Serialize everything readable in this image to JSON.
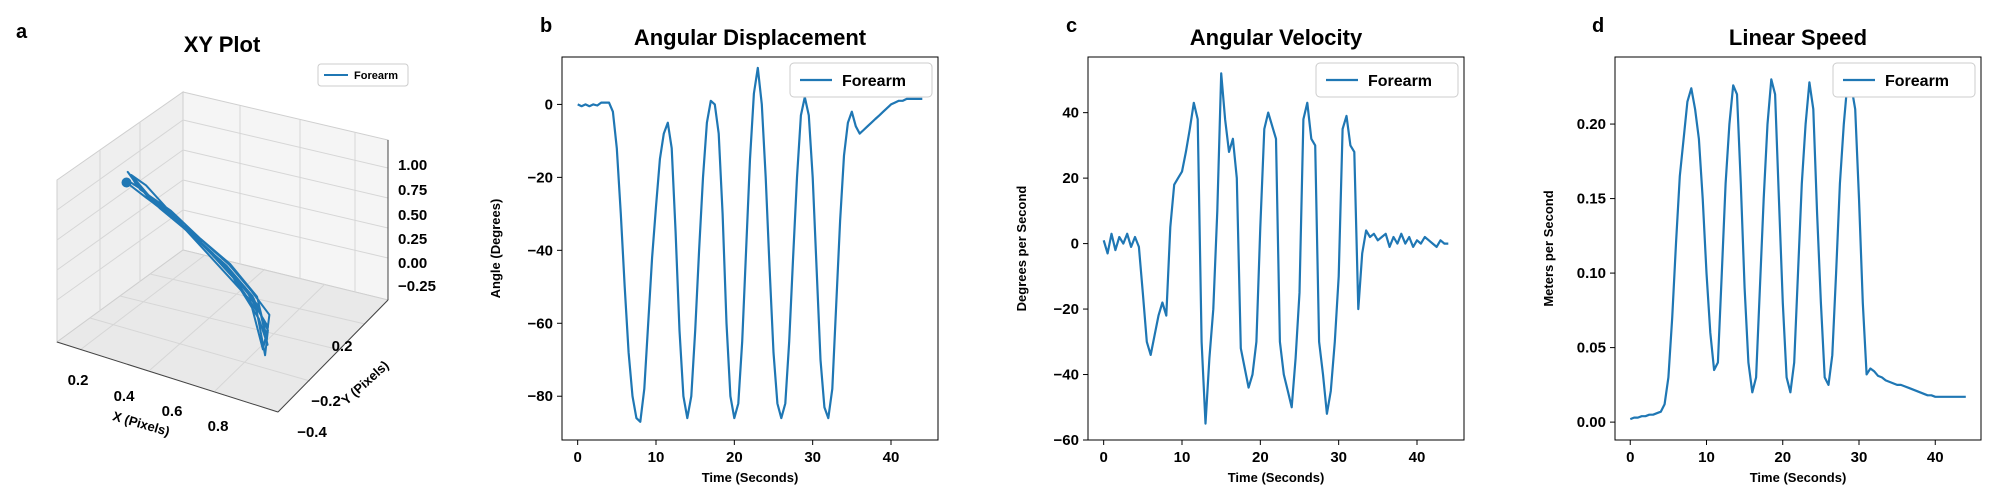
{
  "colors": {
    "series": "#1f77b4",
    "pane": "#f2f2f2",
    "grid": "#d9d9d9"
  },
  "chart_data": [
    {
      "panel": "a",
      "type": "line3d",
      "title": "XY Plot",
      "xlabel": "X (Pixels)",
      "ylabel": "Y (Pixels)",
      "legend": {
        "placement": "top-right",
        "label": "Forearm"
      },
      "x_ticks": [
        "0.2",
        "0.4",
        "0.6",
        "0.8"
      ],
      "y_ticks": [
        "−0.4",
        "−0.2",
        "0.2"
      ],
      "z_ticks": [
        "−0.25",
        "0.00",
        "0.25",
        "0.50",
        "0.75",
        "1.00"
      ],
      "series": [
        {
          "name": "Forearm",
          "points": [
            [
              0.05,
              0.25,
              0.6
            ],
            [
              0.15,
              0.22,
              0.52
            ],
            [
              0.3,
              0.18,
              0.4
            ],
            [
              0.45,
              0.12,
              0.3
            ],
            [
              0.6,
              0.05,
              0.2
            ],
            [
              0.75,
              -0.05,
              0.1
            ],
            [
              0.88,
              -0.15,
              0.02
            ],
            [
              0.92,
              -0.25,
              -0.08
            ],
            [
              0.8,
              -0.1,
              0.12
            ],
            [
              0.62,
              0.02,
              0.25
            ],
            [
              0.45,
              0.1,
              0.35
            ],
            [
              0.28,
              0.18,
              0.48
            ],
            [
              0.12,
              0.23,
              0.58
            ],
            [
              0.05,
              0.26,
              0.7
            ],
            [
              0.18,
              0.21,
              0.5
            ],
            [
              0.35,
              0.15,
              0.38
            ],
            [
              0.52,
              0.07,
              0.26
            ],
            [
              0.68,
              -0.02,
              0.14
            ],
            [
              0.82,
              -0.12,
              0.04
            ],
            [
              0.94,
              -0.28,
              -0.12
            ],
            [
              0.85,
              -0.18,
              0.0
            ],
            [
              0.66,
              -0.03,
              0.18
            ],
            [
              0.48,
              0.08,
              0.3
            ],
            [
              0.3,
              0.17,
              0.44
            ],
            [
              0.14,
              0.24,
              0.62
            ],
            [
              0.06,
              0.27,
              0.66
            ],
            [
              0.22,
              0.2,
              0.46
            ],
            [
              0.4,
              0.13,
              0.33
            ],
            [
              0.58,
              0.04,
              0.22
            ],
            [
              0.74,
              -0.06,
              0.08
            ],
            [
              0.9,
              -0.2,
              -0.04
            ],
            [
              0.93,
              -0.3,
              -0.15
            ],
            [
              0.78,
              -0.12,
              0.1
            ],
            [
              0.58,
              0.0,
              0.24
            ],
            [
              0.38,
              0.12,
              0.38
            ],
            [
              0.2,
              0.2,
              0.52
            ],
            [
              0.08,
              0.25,
              0.64
            ],
            [
              0.1,
              0.24,
              0.6
            ],
            [
              0.25,
              0.19,
              0.47
            ],
            [
              0.42,
              0.11,
              0.34
            ],
            [
              0.6,
              0.03,
              0.21
            ],
            [
              0.77,
              -0.08,
              0.09
            ],
            [
              0.91,
              -0.22,
              -0.05
            ],
            [
              0.95,
              -0.32,
              -0.18
            ],
            [
              0.83,
              -0.16,
              0.05
            ],
            [
              0.65,
              -0.02,
              0.19
            ],
            [
              0.46,
              0.09,
              0.31
            ],
            [
              0.28,
              0.18,
              0.45
            ],
            [
              0.12,
              0.24,
              0.57
            ],
            [
              0.05,
              0.26,
              0.61
            ]
          ]
        }
      ]
    },
    {
      "panel": "b",
      "type": "line",
      "title": "Angular Displacement",
      "xlabel": "Time (Seconds)",
      "ylabel": "Angle (Degrees)",
      "xlim": [
        -2,
        46
      ],
      "ylim": [
        -92,
        13
      ],
      "x_ticks": [
        0,
        10,
        20,
        30,
        40
      ],
      "y_ticks": [
        0,
        -20,
        -40,
        -60,
        -80
      ],
      "y_tick_labels": [
        "0",
        "−20",
        "−40",
        "−60",
        "−80"
      ],
      "legend": {
        "placement": "top-right",
        "label": "Forearm"
      },
      "series": [
        {
          "name": "Forearm",
          "x": [
            0,
            0.5,
            1,
            1.5,
            2,
            2.5,
            3,
            3.5,
            4,
            4.5,
            5,
            5.5,
            6,
            6.5,
            7,
            7.5,
            8,
            8.5,
            9,
            9.5,
            10,
            10.5,
            11,
            11.5,
            12,
            12.5,
            13,
            13.5,
            14,
            14.5,
            15,
            15.5,
            16,
            16.5,
            17,
            17.5,
            18,
            18.5,
            19,
            19.5,
            20,
            20.5,
            21,
            21.5,
            22,
            22.5,
            23,
            23.5,
            24,
            24.5,
            25,
            25.5,
            26,
            26.5,
            27,
            27.5,
            28,
            28.5,
            29,
            29.5,
            30,
            30.5,
            31,
            31.5,
            32,
            32.5,
            33,
            33.5,
            34,
            34.5,
            35,
            35.5,
            36,
            36.5,
            37,
            37.5,
            38,
            38.5,
            39,
            39.5,
            40,
            40.5,
            41,
            41.5,
            42,
            42.5,
            43,
            43.5,
            44
          ],
          "y": [
            0,
            -0.5,
            0,
            -0.5,
            0,
            -0.3,
            0.5,
            0.5,
            0.5,
            -2,
            -12,
            -30,
            -50,
            -68,
            -80,
            -86,
            -87,
            -78,
            -60,
            -42,
            -28,
            -15,
            -8,
            -5,
            -12,
            -35,
            -62,
            -80,
            -86,
            -80,
            -62,
            -40,
            -20,
            -5,
            1,
            0,
            -8,
            -30,
            -60,
            -80,
            -86,
            -82,
            -65,
            -40,
            -15,
            3,
            10,
            0,
            -20,
            -45,
            -68,
            -82,
            -86,
            -82,
            -65,
            -42,
            -20,
            -3,
            2,
            -3,
            -20,
            -45,
            -70,
            -83,
            -86,
            -78,
            -55,
            -32,
            -14,
            -5,
            -2,
            -6,
            -8,
            -7,
            -6,
            -5,
            -4,
            -3,
            -2,
            -1,
            0,
            0.5,
            1,
            1,
            1.5,
            1.5,
            1.5,
            1.5,
            1.5
          ]
        }
      ]
    },
    {
      "panel": "c",
      "type": "line",
      "title": "Angular Velocity",
      "xlabel": "Time (Seconds)",
      "ylabel": "Degrees per Second",
      "xlim": [
        -2,
        46
      ],
      "ylim": [
        -60,
        57
      ],
      "x_ticks": [
        0,
        10,
        20,
        30,
        40
      ],
      "y_ticks": [
        40,
        20,
        0,
        -20,
        -40,
        -60
      ],
      "y_tick_labels": [
        "40",
        "20",
        "0",
        "−20",
        "−40",
        "−60"
      ],
      "legend": {
        "placement": "top-right",
        "label": "Forearm"
      },
      "series": [
        {
          "name": "Forearm",
          "x": [
            0,
            0.5,
            1,
            1.5,
            2,
            2.5,
            3,
            3.5,
            4,
            4.5,
            5,
            5.5,
            6,
            6.5,
            7,
            7.5,
            8,
            8.5,
            9,
            9.5,
            10,
            10.5,
            11,
            11.5,
            12,
            12.5,
            13,
            13.5,
            14,
            14.5,
            15,
            15.5,
            16,
            16.5,
            17,
            17.5,
            18,
            18.5,
            19,
            19.5,
            20,
            20.5,
            21,
            21.5,
            22,
            22.5,
            23,
            23.5,
            24,
            24.5,
            25,
            25.5,
            26,
            26.5,
            27,
            27.5,
            28,
            28.5,
            29,
            29.5,
            30,
            30.5,
            31,
            31.5,
            32,
            32.5,
            33,
            33.5,
            34,
            34.5,
            35,
            35.5,
            36,
            36.5,
            37,
            37.5,
            38,
            38.5,
            39,
            39.5,
            40,
            40.5,
            41,
            41.5,
            42,
            42.5,
            43,
            43.5,
            44
          ],
          "y": [
            1,
            -3,
            3,
            -2,
            2,
            0,
            3,
            -1,
            2,
            -1,
            -15,
            -30,
            -34,
            -28,
            -22,
            -18,
            -22,
            5,
            18,
            20,
            22,
            28,
            35,
            43,
            38,
            -30,
            -55,
            -35,
            -20,
            10,
            52,
            38,
            28,
            32,
            20,
            -32,
            -38,
            -44,
            -40,
            -30,
            5,
            35,
            40,
            36,
            32,
            -30,
            -40,
            -45,
            -50,
            -35,
            -15,
            38,
            43,
            32,
            30,
            -30,
            -40,
            -52,
            -45,
            -30,
            -10,
            35,
            39,
            30,
            28,
            -20,
            -3,
            4,
            2,
            3,
            1,
            2,
            3,
            -1,
            2,
            0,
            3,
            0,
            2,
            -1,
            1,
            0,
            2,
            1,
            0,
            -1,
            1,
            0,
            0
          ]
        }
      ]
    },
    {
      "panel": "d",
      "type": "line",
      "title": "Linear Speed",
      "xlabel": "Time (Seconds)",
      "ylabel": "Meters per Second",
      "xlim": [
        -2,
        46
      ],
      "ylim": [
        -0.012,
        0.245
      ],
      "x_ticks": [
        0,
        10,
        20,
        30,
        40
      ],
      "y_ticks": [
        0.2,
        0.15,
        0.1,
        0.05,
        0.0
      ],
      "y_tick_labels": [
        "0.20",
        "0.15",
        "0.10",
        "0.05",
        "0.00"
      ],
      "legend": {
        "placement": "top-right",
        "label": "Forearm"
      },
      "series": [
        {
          "name": "Forearm",
          "x": [
            0,
            0.5,
            1,
            1.5,
            2,
            2.5,
            3,
            3.5,
            4,
            4.5,
            5,
            5.5,
            6,
            6.5,
            7,
            7.5,
            8,
            8.5,
            9,
            9.5,
            10,
            10.5,
            11,
            11.5,
            12,
            12.5,
            13,
            13.5,
            14,
            14.5,
            15,
            15.5,
            16,
            16.5,
            17,
            17.5,
            18,
            18.5,
            19,
            19.5,
            20,
            20.5,
            21,
            21.5,
            22,
            22.5,
            23,
            23.5,
            24,
            24.5,
            25,
            25.5,
            26,
            26.5,
            27,
            27.5,
            28,
            28.5,
            29,
            29.5,
            30,
            30.5,
            31,
            31.5,
            32,
            32.5,
            33,
            33.5,
            34,
            34.5,
            35,
            35.5,
            36,
            36.5,
            37,
            37.5,
            38,
            38.5,
            39,
            39.5,
            40,
            40.5,
            41,
            41.5,
            42,
            42.5,
            43,
            43.5,
            44
          ],
          "y": [
            0.002,
            0.003,
            0.003,
            0.004,
            0.004,
            0.005,
            0.005,
            0.006,
            0.007,
            0.012,
            0.03,
            0.07,
            0.12,
            0.165,
            0.19,
            0.215,
            0.224,
            0.21,
            0.19,
            0.15,
            0.1,
            0.06,
            0.035,
            0.04,
            0.1,
            0.16,
            0.2,
            0.226,
            0.22,
            0.16,
            0.09,
            0.04,
            0.02,
            0.03,
            0.09,
            0.15,
            0.2,
            0.23,
            0.22,
            0.15,
            0.08,
            0.03,
            0.02,
            0.04,
            0.1,
            0.16,
            0.2,
            0.228,
            0.21,
            0.14,
            0.08,
            0.03,
            0.025,
            0.045,
            0.1,
            0.16,
            0.2,
            0.229,
            0.225,
            0.21,
            0.15,
            0.08,
            0.032,
            0.036,
            0.034,
            0.031,
            0.03,
            0.028,
            0.027,
            0.026,
            0.025,
            0.025,
            0.024,
            0.023,
            0.022,
            0.021,
            0.02,
            0.019,
            0.018,
            0.018,
            0.017,
            0.017,
            0.017,
            0.017,
            0.017,
            0.017,
            0.017,
            0.017,
            0.017
          ]
        }
      ]
    }
  ]
}
